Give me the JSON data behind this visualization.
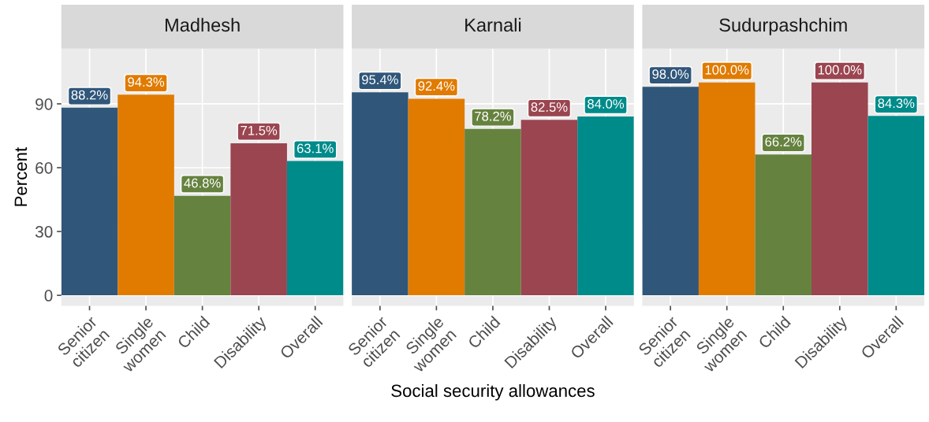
{
  "chart_data": [
    {
      "type": "bar",
      "title": "Madhesh",
      "ylabel": "Percent",
      "categories": [
        "Senior\ncitizen",
        "Single\nwomen",
        "Child",
        "Disability",
        "Overall"
      ],
      "values": [
        88.2,
        94.3,
        46.8,
        71.5,
        63.1
      ],
      "value_labels": [
        "88.2%",
        "94.3%",
        "46.8%",
        "71.5%",
        "63.1%"
      ],
      "colors": [
        "#30567a",
        "#e07b00",
        "#66823f",
        "#9a4550",
        "#008b8b"
      ],
      "ylim": [
        -5,
        116
      ],
      "yticks": [
        0,
        30,
        60,
        90
      ],
      "grid": true
    },
    {
      "type": "bar",
      "title": "Karnali",
      "xlabel": "Social security allowances",
      "categories": [
        "Senior\ncitizen",
        "Single\nwomen",
        "Child",
        "Disability",
        "Overall"
      ],
      "values": [
        95.4,
        92.4,
        78.2,
        82.5,
        84.0
      ],
      "value_labels": [
        "95.4%",
        "92.4%",
        "78.2%",
        "82.5%",
        "84.0%"
      ],
      "colors": [
        "#30567a",
        "#e07b00",
        "#66823f",
        "#9a4550",
        "#008b8b"
      ],
      "ylim": [
        -5,
        116
      ],
      "yticks": [
        0,
        30,
        60,
        90
      ],
      "grid": true,
      "tick_labels": "x"
    },
    {
      "type": "bar",
      "title": "Sudurpashchim",
      "categories": [
        "Senior\ncitizen",
        "Single\nwomen",
        "Child",
        "Disability",
        "Overall"
      ],
      "values": [
        98.0,
        100.0,
        66.2,
        100.0,
        84.3
      ],
      "value_labels": [
        "98.0%",
        "100.0%",
        "66.2%",
        "100.0%",
        "84.3%"
      ],
      "colors": [
        "#30567a",
        "#e07b00",
        "#66823f",
        "#9a4550",
        "#008b8b"
      ],
      "ylim": [
        -5,
        116
      ],
      "yticks": [
        0,
        30,
        60,
        90
      ],
      "grid": true,
      "tick_labels": "x"
    }
  ]
}
